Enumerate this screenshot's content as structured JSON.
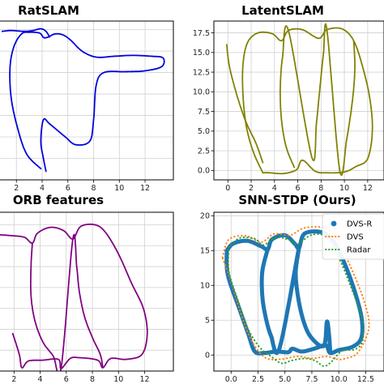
{
  "chart_data": [
    {
      "type": "line",
      "title": "RatSLAM",
      "xticks": [
        2,
        4,
        6,
        8,
        10,
        12
      ],
      "yticks": [],
      "xlim": [
        0.6,
        14.2
      ],
      "ylim": [
        0,
        18.5
      ],
      "grid": true,
      "series": [
        {
          "color": "#0000dd",
          "style": "scatter-dense",
          "points": [
            [
              3.9,
              1.3
            ],
            [
              2.8,
              3
            ],
            [
              2.1,
              6
            ],
            [
              1.6,
              9.5
            ],
            [
              1.5,
              13
            ],
            [
              1.8,
              15.5
            ],
            [
              2.4,
              17
            ],
            [
              3.0,
              17.2
            ],
            [
              3.8,
              17.1
            ],
            [
              4.1,
              16.6
            ],
            [
              4.4,
              16.6
            ],
            [
              5.0,
              17.0
            ],
            [
              5.6,
              16.9
            ],
            [
              6.2,
              16.3
            ],
            [
              7.1,
              15.0
            ],
            [
              8.2,
              14.3
            ],
            [
              9.6,
              14.4
            ],
            [
              11.0,
              14.5
            ],
            [
              12.5,
              14.4
            ],
            [
              13.4,
              14.2
            ],
            [
              13.3,
              13.2
            ],
            [
              12.0,
              12.7
            ],
            [
              10.5,
              12.6
            ],
            [
              8.8,
              12.5
            ],
            [
              8.2,
              11.0
            ],
            [
              8.0,
              7.0
            ],
            [
              7.7,
              4.5
            ],
            [
              6.6,
              4.1
            ],
            [
              5.8,
              5.0
            ],
            [
              4.6,
              6.5
            ],
            [
              4.1,
              7.0
            ],
            [
              3.9,
              4.5
            ],
            [
              4.1,
              2.5
            ],
            [
              4.3,
              1.0
            ]
          ]
        },
        {
          "color": "#0000dd",
          "style": "scatter-dense",
          "points": [
            [
              0.9,
              17.3
            ],
            [
              1.6,
              17.4
            ],
            [
              2.6,
              17.3
            ],
            [
              3.3,
              17.4
            ],
            [
              3.9,
              17.6
            ],
            [
              4.3,
              17.3
            ],
            [
              4.6,
              16.6
            ]
          ]
        }
      ]
    },
    {
      "type": "line",
      "title": "LatentSLAM",
      "xticks": [
        0,
        2,
        4,
        6,
        8,
        10,
        12
      ],
      "yticks": [
        0.0,
        2.5,
        5.0,
        7.5,
        10.0,
        12.5,
        15.0,
        17.5
      ],
      "xlim": [
        -1.2,
        13.4
      ],
      "ylim": [
        -1.2,
        19.0
      ],
      "grid": true,
      "series": [
        {
          "color": "#808000",
          "style": "scatter-dense",
          "points": [
            [
              3.0,
              -0.3
            ],
            [
              2.2,
              2.3
            ],
            [
              1.6,
              5.5
            ],
            [
              1.3,
              9.5
            ],
            [
              1.3,
              13.5
            ],
            [
              1.7,
              16.3
            ],
            [
              2.6,
              17.5
            ],
            [
              3.8,
              17.4
            ],
            [
              4.6,
              16.5
            ],
            [
              5.2,
              17.8
            ],
            [
              6.4,
              17.9
            ],
            [
              7.8,
              16.8
            ],
            [
              8.5,
              17.9
            ],
            [
              9.8,
              18.0
            ],
            [
              10.8,
              16.5
            ],
            [
              11.6,
              13.0
            ],
            [
              12.2,
              9.0
            ],
            [
              12.4,
              5.0
            ],
            [
              12.0,
              1.5
            ],
            [
              11.0,
              0.5
            ],
            [
              10.0,
              -0.2
            ],
            [
              8.5,
              -0.3
            ],
            [
              7.5,
              -0.1
            ],
            [
              6.4,
              1.3
            ],
            [
              5.9,
              0.1
            ],
            [
              4.8,
              -0.4
            ],
            [
              3.6,
              -0.3
            ],
            [
              3.0,
              -0.3
            ]
          ]
        },
        {
          "color": "#808000",
          "style": "scatter-dense",
          "points": [
            [
              -0.1,
              16.0
            ],
            [
              0.1,
              13.5
            ],
            [
              0.5,
              11.0
            ],
            [
              1.0,
              8.5
            ],
            [
              1.6,
              6.0
            ],
            [
              2.4,
              3.5
            ],
            [
              3.0,
              1.0
            ]
          ]
        },
        {
          "color": "#808000",
          "style": "scatter-dense",
          "points": [
            [
              5.7,
              0.4
            ],
            [
              5.0,
              3.0
            ],
            [
              4.6,
              6.5
            ],
            [
              4.5,
              10.5
            ],
            [
              4.7,
              14.5
            ],
            [
              5.2,
              17.8
            ],
            [
              7.2,
              1.7
            ],
            [
              7.6,
              6.0
            ],
            [
              7.9,
              10.5
            ],
            [
              8.2,
              14.8
            ],
            [
              8.5,
              17.9
            ],
            [
              9.6,
              0.0
            ],
            [
              10.2,
              4.0
            ],
            [
              10.7,
              9.0
            ],
            [
              10.9,
              13.0
            ],
            [
              10.8,
              16.5
            ]
          ]
        }
      ]
    },
    {
      "type": "line",
      "title": "ORB features",
      "xticks": [
        2,
        4,
        6,
        8,
        10,
        12
      ],
      "yticks": [],
      "xlim": [
        0.8,
        14.2
      ],
      "ylim": [
        0,
        19.0
      ],
      "grid": true,
      "series": [
        {
          "color": "#800080",
          "style": "scatter-dense",
          "points": [
            [
              0.9,
              16.3
            ],
            [
              1.8,
              16.2
            ],
            [
              2.8,
              16.0
            ],
            [
              3.4,
              15.3
            ],
            [
              3.8,
              16.5
            ],
            [
              4.8,
              17.2
            ],
            [
              5.8,
              16.8
            ],
            [
              6.5,
              15.8
            ],
            [
              7.1,
              17.3
            ],
            [
              8.2,
              17.5
            ],
            [
              9.0,
              16.6
            ],
            [
              10.0,
              14.0
            ],
            [
              11.0,
              10.5
            ],
            [
              11.9,
              7.5
            ],
            [
              12.2,
              4.5
            ],
            [
              11.8,
              2.0
            ],
            [
              10.6,
              1.4
            ],
            [
              9.4,
              1.5
            ],
            [
              8.8,
              0.4
            ],
            [
              8.4,
              1.3
            ],
            [
              7.0,
              1.6
            ],
            [
              6.3,
              1.5
            ],
            [
              5.6,
              0.3
            ],
            [
              5.4,
              1.4
            ],
            [
              4.2,
              1.3
            ],
            [
              3.1,
              1.2
            ],
            [
              2.6,
              0.4
            ],
            [
              2.4,
              2.0
            ],
            [
              1.9,
              4.5
            ]
          ]
        },
        {
          "color": "#800080",
          "style": "scatter-dense",
          "points": [
            [
              3.4,
              15.3
            ],
            [
              3.3,
              12.5
            ],
            [
              3.3,
              9.0
            ],
            [
              3.6,
              6.0
            ],
            [
              4.2,
              3.5
            ],
            [
              5.0,
              1.8
            ],
            [
              5.6,
              0.3
            ],
            [
              6.5,
              15.8
            ],
            [
              6.8,
              12.5
            ],
            [
              7.0,
              9.5
            ],
            [
              7.4,
              6.5
            ],
            [
              8.0,
              4.0
            ],
            [
              8.6,
              2.0
            ],
            [
              8.8,
              0.4
            ]
          ]
        }
      ]
    },
    {
      "type": "line",
      "title": "SNN-STDP (Ours)",
      "xticks": [
        0.0,
        2.5,
        5.0,
        7.5,
        10.0,
        12.5
      ],
      "yticks": [
        0,
        5,
        10,
        15,
        20
      ],
      "xlim": [
        -1.6,
        14.2
      ],
      "ylim": [
        -2.3,
        20.5
      ],
      "grid": true,
      "legend_position": "top-right",
      "series": [
        {
          "name": "DVS-R",
          "color": "#1f77b4",
          "style": "thick",
          "points": [
            [
              -0.4,
              15.0
            ],
            [
              0.2,
              16.0
            ],
            [
              1.5,
              16.4
            ],
            [
              2.8,
              15.6
            ],
            [
              3.4,
              15.2
            ],
            [
              3.8,
              16.6
            ],
            [
              5.0,
              17.2
            ],
            [
              5.9,
              16.0
            ],
            [
              6.3,
              15.4
            ],
            [
              6.8,
              17.4
            ],
            [
              8.2,
              17.7
            ],
            [
              9.3,
              16.8
            ],
            [
              10.3,
              14.0
            ],
            [
              11.3,
              10.0
            ],
            [
              12.1,
              5.5
            ],
            [
              12.1,
              2.5
            ],
            [
              11.3,
              1.2
            ],
            [
              10.0,
              0.7
            ],
            [
              9.2,
              0.3
            ],
            [
              8.8,
              1.4
            ],
            [
              7.9,
              1.0
            ],
            [
              6.6,
              0.5
            ],
            [
              5.7,
              0.9
            ],
            [
              5.3,
              0.4
            ],
            [
              4.2,
              0.5
            ],
            [
              3.1,
              0.3
            ],
            [
              2.2,
              0.5
            ],
            [
              1.6,
              3.0
            ],
            [
              0.8,
              6.5
            ],
            [
              -0.3,
              11.5
            ],
            [
              -0.4,
              15.0
            ]
          ]
        },
        {
          "name": "DVS-R",
          "color": "#1f77b4",
          "style": "thick",
          "points": [
            [
              3.4,
              15.2
            ],
            [
              2.9,
              12.0
            ],
            [
              2.9,
              8.5
            ],
            [
              3.2,
              5.5
            ],
            [
              3.7,
              2.8
            ],
            [
              4.5,
              1.0
            ],
            [
              6.3,
              15.4
            ],
            [
              6.0,
              12.0
            ],
            [
              6.2,
              8.5
            ],
            [
              6.7,
              5.0
            ],
            [
              7.4,
              2.6
            ],
            [
              8.6,
              1.3
            ],
            [
              8.9,
              4.8
            ],
            [
              9.1,
              2.8
            ],
            [
              9.2,
              0.5
            ]
          ]
        },
        {
          "name": "DVS",
          "color": "#ff7f0e",
          "style": "dotted",
          "points": [
            [
              -0.8,
              14.0
            ],
            [
              -0.2,
              16.6
            ],
            [
              1.4,
              17.1
            ],
            [
              2.8,
              16.2
            ],
            [
              4.0,
              17.4
            ],
            [
              5.5,
              17.2
            ],
            [
              6.7,
              18.2
            ],
            [
              8.5,
              18.3
            ],
            [
              9.8,
              16.8
            ],
            [
              11.0,
              13.0
            ],
            [
              12.3,
              8.0
            ],
            [
              12.8,
              4.0
            ],
            [
              11.8,
              0.4
            ],
            [
              10.6,
              -0.5
            ],
            [
              9.8,
              -0.6
            ],
            [
              8.9,
              -0.2
            ],
            [
              7.5,
              -0.5
            ],
            [
              6.2,
              -0.2
            ],
            [
              4.6,
              -0.6
            ],
            [
              3.2,
              -0.4
            ],
            [
              2.0,
              1.8
            ],
            [
              1.0,
              5.5
            ],
            [
              0.0,
              10.5
            ],
            [
              -0.8,
              14.0
            ]
          ]
        },
        {
          "name": "Radar",
          "color": "#2ca02c",
          "style": "dotted",
          "points": [
            [
              -0.2,
              15.5
            ],
            [
              0.8,
              16.8
            ],
            [
              2.2,
              16.7
            ],
            [
              3.0,
              15.8
            ],
            [
              4.2,
              16.9
            ],
            [
              5.6,
              16.4
            ],
            [
              6.2,
              15.9
            ],
            [
              7.4,
              17.2
            ],
            [
              8.8,
              17.0
            ],
            [
              10.0,
              14.0
            ],
            [
              11.2,
              9.5
            ],
            [
              12.2,
              5.0
            ],
            [
              12.2,
              2.0
            ],
            [
              11.5,
              0.8
            ],
            [
              10.3,
              0.6
            ],
            [
              9.3,
              -1.0
            ],
            [
              8.6,
              -1.6
            ],
            [
              7.8,
              -0.8
            ],
            [
              6.8,
              -0.5
            ],
            [
              5.6,
              -0.8
            ],
            [
              4.7,
              -1.2
            ],
            [
              3.8,
              -0.3
            ],
            [
              2.6,
              1.2
            ],
            [
              1.5,
              4.0
            ],
            [
              0.6,
              8.0
            ],
            [
              -0.2,
              12.0
            ],
            [
              -0.2,
              15.5
            ]
          ]
        }
      ],
      "legend": [
        "DVS-R",
        "DVS",
        "Radar"
      ]
    }
  ]
}
